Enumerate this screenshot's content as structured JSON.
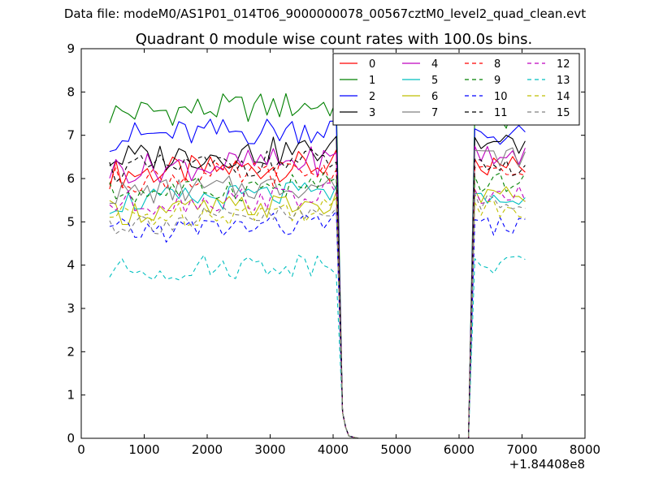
{
  "figure": {
    "supertitle": "Data file: modeM0/AS1P01_014T06_9000000078_00567cztM0_level2_quad_clean.evt"
  },
  "chart_data": {
    "type": "line",
    "title": "Quadrant 0 module wise count rates with 100.0s bins.",
    "xlabel": "",
    "ylabel": "",
    "x_offset_label": "+1.84408e8",
    "xlim": [
      0,
      8000
    ],
    "ylim": [
      0,
      9
    ],
    "x_ticks": [
      0,
      1000,
      2000,
      3000,
      4000,
      5000,
      6000,
      7000,
      8000
    ],
    "y_ticks": [
      0,
      1,
      2,
      3,
      4,
      5,
      6,
      7,
      8,
      9
    ],
    "grid": false,
    "legend_position": "top-right",
    "legend_columns": 4,
    "x_groups": [
      {
        "start": 450,
        "step": 100,
        "count": 37
      },
      {
        "start": 4150,
        "step": 50,
        "count": 3
      },
      {
        "start": 4400,
        "step": 1750,
        "count": 2
      },
      {
        "start": 6250,
        "step": 100,
        "count": 9
      }
    ],
    "gap_value": 0,
    "series": [
      {
        "name": "0",
        "color": "#ff0000",
        "dash": "solid",
        "base": 6.2,
        "amp": 0.35,
        "end": 6.3,
        "drop": 4.0
      },
      {
        "name": "1",
        "color": "#008000",
        "dash": "solid",
        "base": 7.6,
        "amp": 0.35,
        "end": 7.4,
        "drop": 4.6
      },
      {
        "name": "2",
        "color": "#0000ff",
        "dash": "solid",
        "base": 7.05,
        "amp": 0.35,
        "end": 7.0,
        "drop": 4.3
      },
      {
        "name": "3",
        "color": "#000000",
        "dash": "solid",
        "base": 6.55,
        "amp": 0.35,
        "end": 6.8,
        "drop": 4.2
      },
      {
        "name": "4",
        "color": "#bf00bf",
        "dash": "solid",
        "base": 6.3,
        "amp": 0.35,
        "end": 6.6,
        "drop": 4.0
      },
      {
        "name": "5",
        "color": "#00bfbf",
        "dash": "solid",
        "base": 5.55,
        "amp": 0.3,
        "end": 5.5,
        "drop": 4.0
      },
      {
        "name": "6",
        "color": "#bfbf00",
        "dash": "solid",
        "base": 5.3,
        "amp": 0.3,
        "end": 5.6,
        "drop": 3.9
      },
      {
        "name": "7",
        "color": "#808080",
        "dash": "solid",
        "base": 5.75,
        "amp": 0.3,
        "end": 6.5,
        "drop": 4.1
      },
      {
        "name": "8",
        "color": "#ff0000",
        "dash": "dashed",
        "base": 6.05,
        "amp": 0.3,
        "end": 6.1,
        "drop": 4.1
      },
      {
        "name": "9",
        "color": "#008000",
        "dash": "dashed",
        "base": 5.75,
        "amp": 0.3,
        "end": 5.9,
        "drop": 4.0
      },
      {
        "name": "10",
        "color": "#0000ff",
        "dash": "dashed",
        "base": 4.85,
        "amp": 0.3,
        "end": 4.9,
        "drop": 3.6
      },
      {
        "name": "11",
        "color": "#000000",
        "dash": "dashed",
        "base": 6.3,
        "amp": 0.3,
        "end": 6.3,
        "drop": 4.2
      },
      {
        "name": "12",
        "color": "#bf00bf",
        "dash": "dashed",
        "base": 5.5,
        "amp": 0.3,
        "end": 5.6,
        "drop": 3.9
      },
      {
        "name": "13",
        "color": "#00bfbf",
        "dash": "dashed",
        "base": 3.95,
        "amp": 0.3,
        "end": 4.0,
        "drop": 2.2
      },
      {
        "name": "14",
        "color": "#bfbf00",
        "dash": "dashed",
        "base": 5.2,
        "amp": 0.3,
        "end": 5.3,
        "drop": 3.8
      },
      {
        "name": "15",
        "color": "#808080",
        "dash": "dashed",
        "base": 5.05,
        "amp": 0.3,
        "end": 5.5,
        "drop": 3.5
      }
    ]
  }
}
